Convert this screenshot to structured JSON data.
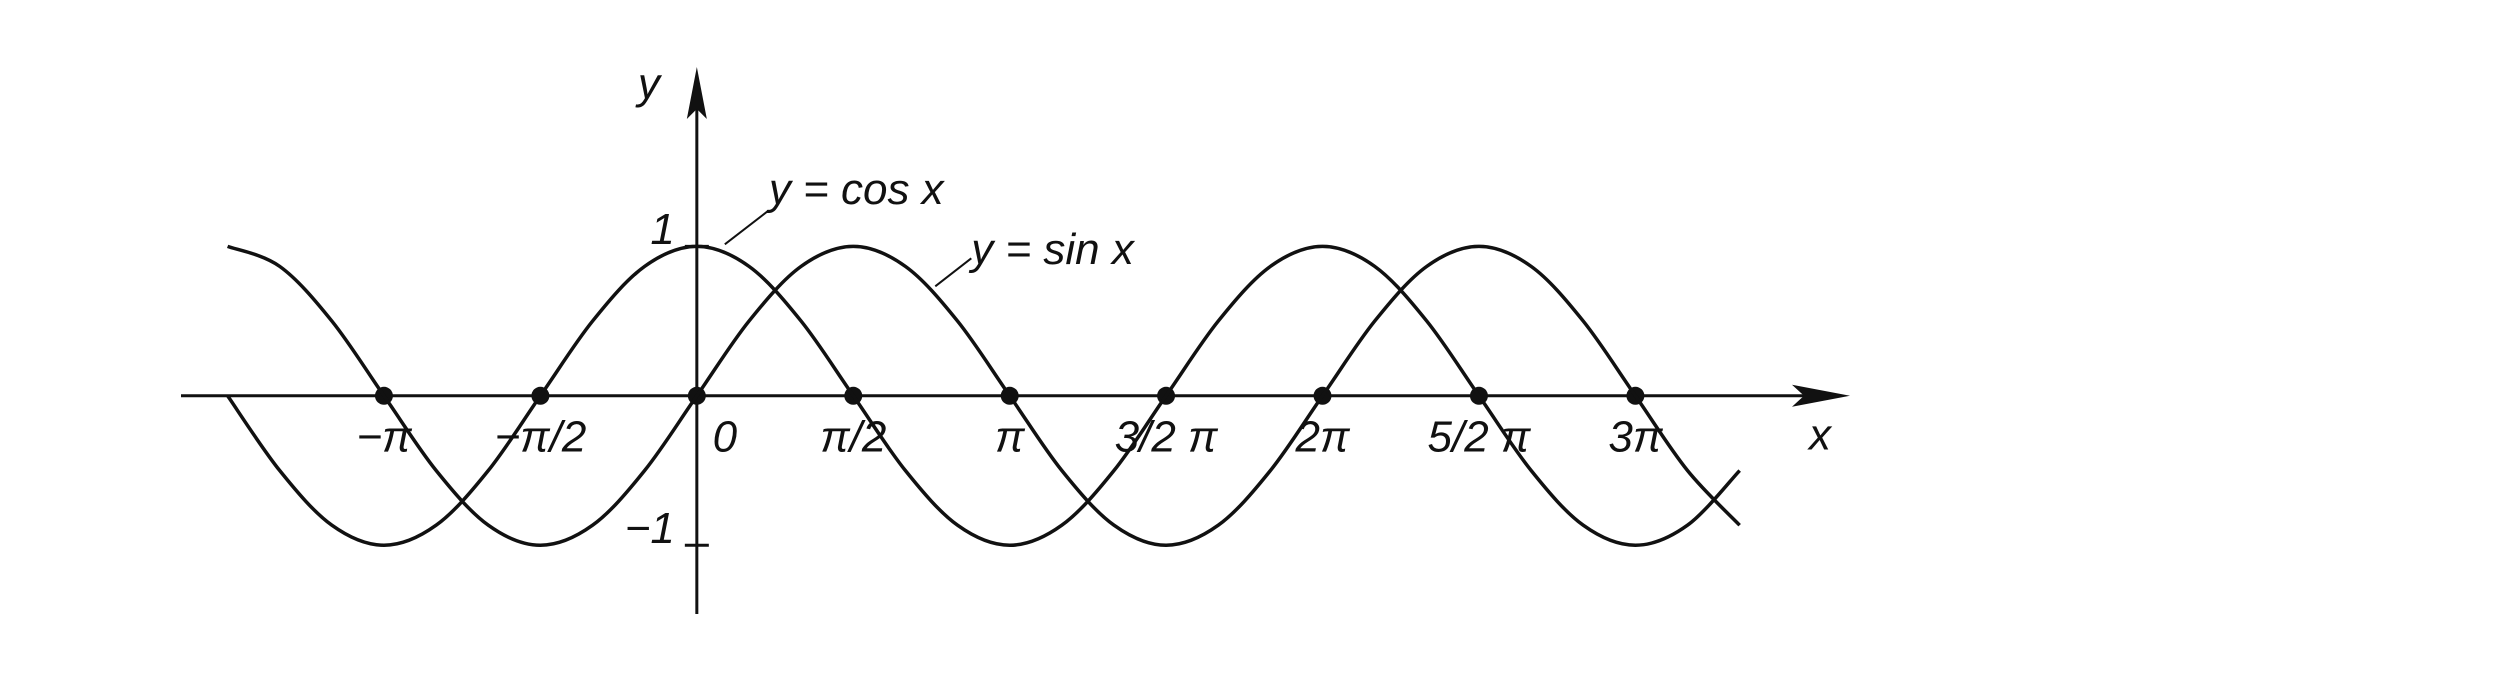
{
  "chart_data": {
    "type": "line",
    "x_label": "x",
    "y_label": "y",
    "x": [
      -4.712,
      -4.189,
      -3.665,
      -3.142,
      -2.618,
      -2.094,
      -1.571,
      -1.047,
      -0.524,
      0,
      0.524,
      1.047,
      1.571,
      2.094,
      2.618,
      3.142,
      3.665,
      4.189,
      4.712,
      5.236,
      5.76,
      6.283,
      6.807,
      7.33,
      7.854,
      8.378,
      8.901,
      9.425,
      9.948,
      10.472
    ],
    "series": [
      {
        "name": "y = cos x",
        "color": "#111111",
        "values": [
          0,
          -0.5,
          -0.866,
          -1,
          -0.866,
          -0.5,
          0,
          0.5,
          0.866,
          1,
          0.866,
          0.5,
          0,
          -0.5,
          -0.866,
          -1,
          -0.866,
          -0.5,
          0,
          0.5,
          0.866,
          1,
          0.866,
          0.5,
          0,
          -0.5,
          -0.866,
          -1,
          -0.866,
          -0.5
        ]
      },
      {
        "name": "y = sin x",
        "color": "#111111",
        "values": [
          1,
          0.866,
          0.5,
          0,
          -0.5,
          -0.866,
          -1,
          -0.866,
          -0.5,
          0,
          0.5,
          0.866,
          1,
          0.866,
          0.5,
          0,
          -0.5,
          -0.866,
          -1,
          -0.866,
          -0.5,
          0,
          0.5,
          0.866,
          1,
          0.866,
          0.5,
          0,
          -0.5,
          -0.866
        ]
      }
    ],
    "xlim": [
      -5.18,
      11.58
    ],
    "ylim": [
      -1.46,
      2.2
    ],
    "xticks": [
      {
        "value": -3.142,
        "label": "−π"
      },
      {
        "value": -1.571,
        "label": "−π/2"
      },
      0,
      {
        "value": 1.571,
        "label": "π/2"
      },
      {
        "value": 3.142,
        "label": "π"
      },
      {
        "value": 4.712,
        "label": "3/2 π"
      },
      {
        "value": 6.283,
        "label": "2π"
      },
      {
        "value": 7.854,
        "label": "5/2 π"
      },
      {
        "value": 9.425,
        "label": "3π"
      }
    ],
    "yticks": [
      1,
      {
        "value": -1,
        "label": "−1"
      }
    ],
    "grid": false
  }
}
